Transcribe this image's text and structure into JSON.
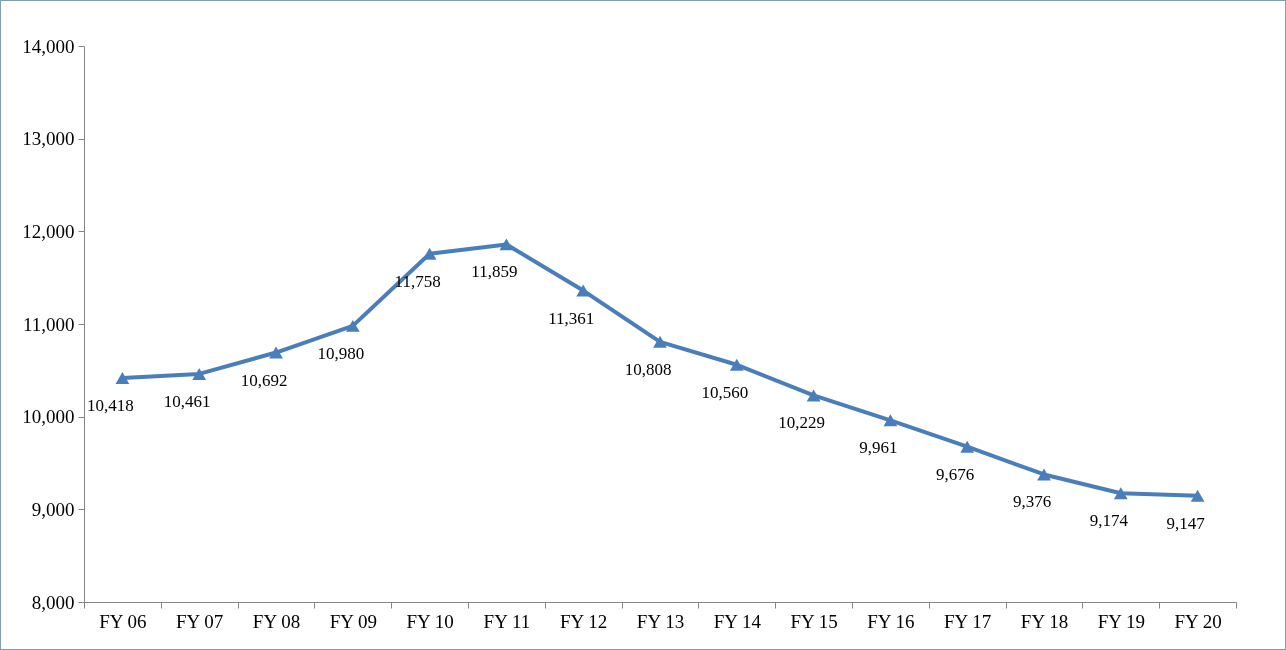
{
  "chart_data": {
    "type": "line",
    "categories": [
      "FY 06",
      "FY 07",
      "FY 08",
      "FY 09",
      "FY 10",
      "FY 11",
      "FY 12",
      "FY 13",
      "FY 14",
      "FY 15",
      "FY 16",
      "FY 17",
      "FY 18",
      "FY 19",
      "FY 20"
    ],
    "series": [
      {
        "color": "#4a7ebb",
        "values": [
          10418,
          10461,
          10692,
          10980,
          11758,
          11859,
          11361,
          10808,
          10560,
          10229,
          9961,
          9676,
          9376,
          9174,
          9147
        ],
        "value_labels": [
          "10,418",
          "10,461",
          "10,692",
          "10,980",
          "11,758",
          "11,859",
          "11,361",
          "10,808",
          "10,560",
          "10,229",
          "9,961",
          "9,676",
          "9,376",
          "9,174",
          "9,147"
        ]
      }
    ],
    "ylim": [
      8000,
      14000
    ],
    "yticks": [
      {
        "value": 8000,
        "label": "8,000"
      },
      {
        "value": 9000,
        "label": "9,000"
      },
      {
        "value": 10000,
        "label": "10,000"
      },
      {
        "value": 11000,
        "label": "11,000"
      },
      {
        "value": 12000,
        "label": "12,000"
      },
      {
        "value": 13000,
        "label": "13,000"
      },
      {
        "value": 14000,
        "label": "14,000"
      }
    ],
    "grid": false,
    "marker": "triangle",
    "line_style": "solid"
  }
}
